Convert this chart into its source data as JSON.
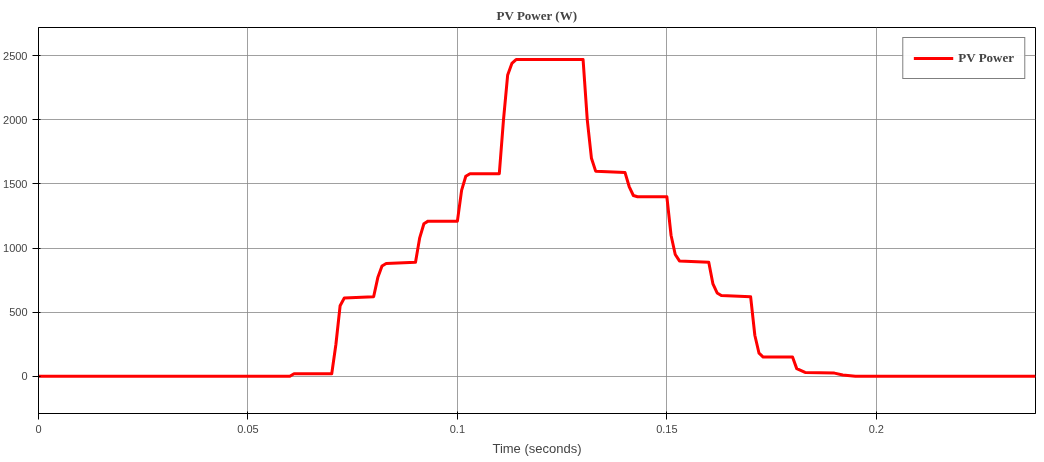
{
  "chart_data": {
    "type": "line",
    "title": "PV Power (W)",
    "xlabel": "Time (seconds)",
    "xlim": [
      0,
      0.238
    ],
    "ylim": [
      -290,
      2720
    ],
    "xticks": [
      0,
      0.05,
      0.1,
      0.15,
      0.2
    ],
    "yticks": [
      0,
      500,
      1000,
      1500,
      2000,
      2500
    ],
    "grid": true,
    "legend": "top right",
    "line_style": "solid",
    "marker": "none",
    "series": [
      {
        "name": "PV Power",
        "color": "#ff0000",
        "x": [
          0,
          0.06,
          0.061,
          0.07,
          0.071,
          0.072,
          0.073,
          0.08,
          0.081,
          0.082,
          0.083,
          0.09,
          0.091,
          0.092,
          0.093,
          0.1,
          0.101,
          0.102,
          0.103,
          0.11,
          0.111,
          0.112,
          0.113,
          0.114,
          0.13,
          0.131,
          0.132,
          0.133,
          0.14,
          0.141,
          0.142,
          0.143,
          0.15,
          0.151,
          0.152,
          0.153,
          0.16,
          0.161,
          0.162,
          0.163,
          0.17,
          0.171,
          0.172,
          0.173,
          0.18,
          0.181,
          0.183,
          0.19,
          0.192,
          0.195,
          0.238
        ],
        "values": [
          0,
          0,
          20,
          20,
          250,
          550,
          610,
          620,
          770,
          860,
          880,
          890,
          1080,
          1190,
          1210,
          1210,
          1450,
          1560,
          1580,
          1580,
          2000,
          2350,
          2440,
          2470,
          2470,
          2000,
          1700,
          1600,
          1590,
          1480,
          1410,
          1400,
          1400,
          1100,
          950,
          900,
          890,
          720,
          650,
          630,
          620,
          320,
          180,
          150,
          150,
          60,
          30,
          25,
          10,
          0,
          0
        ]
      }
    ]
  }
}
